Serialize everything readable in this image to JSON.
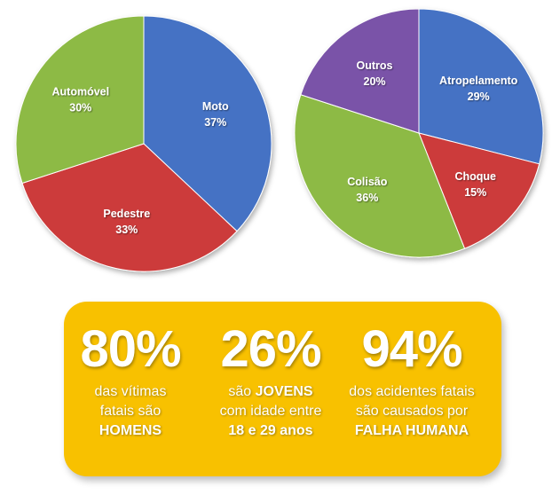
{
  "chart_data": [
    {
      "type": "pie",
      "categories": [
        "Moto",
        "Pedestre",
        "Automóvel"
      ],
      "values": [
        37,
        33,
        30
      ],
      "labels": [
        "37%",
        "33%",
        "30%"
      ],
      "colors": [
        "#4472c4",
        "#cc3b3b",
        "#8dba44"
      ]
    },
    {
      "type": "pie",
      "categories": [
        "Atropelamento",
        "Choque",
        "Colisão",
        "Outros"
      ],
      "values": [
        29,
        15,
        36,
        20
      ],
      "labels": [
        "29%",
        "15%",
        "36%",
        "20%"
      ],
      "colors": [
        "#4472c4",
        "#cc3b3b",
        "#8dba44",
        "#7a52a8"
      ]
    }
  ],
  "stats": [
    {
      "value": "80%",
      "line1": "das vítimas",
      "line2": "fatais são",
      "line3": "HOMENS"
    },
    {
      "value": "26%",
      "line1_pre": "são ",
      "line1_bold": "JOVENS",
      "line2": "com idade entre",
      "line3": "18 e 29 anos"
    },
    {
      "value": "94%",
      "line1": "dos acidentes fatais",
      "line2": "são causados por",
      "line3": "FALHA HUMANA"
    }
  ],
  "colors": {
    "panel": "#f8c100",
    "text": "#ffffff"
  }
}
